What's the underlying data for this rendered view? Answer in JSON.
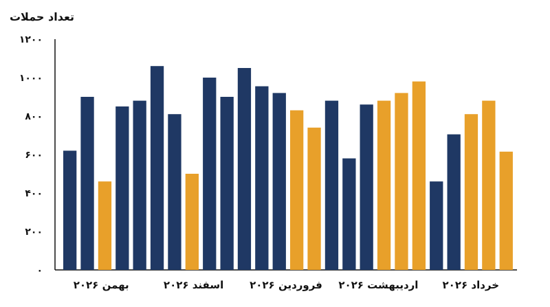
{
  "chart_data": {
    "type": "bar",
    "ylabel": "تعداد حملات",
    "xlabel": "",
    "ylim": [
      0,
      1200
    ],
    "yticks": [
      "۰",
      "۲۰۰",
      "۴۰۰",
      "۶۰۰",
      "۸۰۰",
      "۱۰۰۰",
      "۱۲۰۰"
    ],
    "ytick_values": [
      0,
      200,
      400,
      600,
      800,
      1000,
      1200
    ],
    "month_labels": [
      "بهمن ۲۰۲۶",
      "اسفند ۲۰۲۶",
      "فروردین ۲۰۲۶",
      "اردیبهشت ۲۰۲۶",
      "خرداد ۲۰۲۶"
    ],
    "colors": {
      "navy": "#1f3864",
      "gold": "#e8a02a"
    },
    "values": [
      620,
      900,
      460,
      850,
      880,
      1060,
      810,
      500,
      1000,
      900,
      1050,
      955,
      920,
      830,
      740,
      880,
      580,
      860,
      880,
      920,
      980,
      460,
      705,
      810,
      880,
      615
    ],
    "bar_colors": [
      "navy",
      "navy",
      "gold",
      "navy",
      "navy",
      "navy",
      "navy",
      "gold",
      "navy",
      "navy",
      "navy",
      "navy",
      "navy",
      "gold",
      "gold",
      "navy",
      "navy",
      "navy",
      "gold",
      "gold",
      "gold",
      "navy",
      "navy",
      "gold",
      "gold",
      "gold"
    ],
    "grid": false,
    "legend": "none"
  }
}
